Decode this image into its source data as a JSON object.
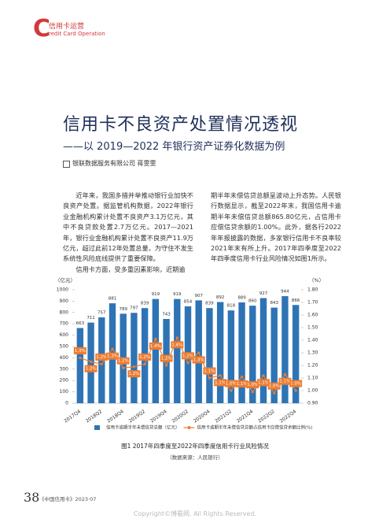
{
  "header": {
    "logo_letter": "C",
    "section": "信用卡运营",
    "section_en": "redit Card Operation"
  },
  "article": {
    "title": "信用卡不良资产处置情况透视",
    "subtitle": "——以 2019—2022 年银行资产证券化数据为例",
    "author": "银联数据服务有限公司  蒋雯雯",
    "left_column": [
      "近年来，我国多措并举推动银行业加快不良资产处置。据监管机构数据，2022年银行业金融机构累计处置不良资产3.1万亿元，其中不良贷款处置2.7万亿元。2017—2021年，银行业金融机构累计处置不良资产11.9万亿元，超过此前12年处置总量，为守住不发生系统性风险底线提供了重要保障。",
      "信用卡方面，受多重因素影响，近期逾"
    ],
    "right_column": [
      "期半年未偿信贷总额呈波动上升态势。人民银行数据显示，截至2022年末，我国信用卡逾期半年未偿信贷总额865.80亿元，占信用卡应偿信贷余额的1.00%。此外，据各行2022年年报披露的数据，多家银行信用卡不良率较2021年末有所上升。2017年四季度至2022年四季度信用卡行业风险情况如图1所示。"
    ]
  },
  "chart_data": {
    "type": "bar-line",
    "title": "图1  2017年四季度至2022年四季度信用卡行业风险情况",
    "source": "（数据来源：人民银行）",
    "ylabel": "（亿元）",
    "y2label": "（%）",
    "categories": [
      "2017Q4",
      null,
      "2018Q2",
      null,
      "2018Q4",
      null,
      "2019Q2",
      null,
      "2019Q4",
      null,
      "2020Q2",
      null,
      "2020Q4",
      null,
      "2021Q2",
      null,
      "2021Q4",
      null,
      "2022Q2",
      null,
      "2022Q4"
    ],
    "series": [
      {
        "name": "信用卡逾期半年未偿信贷总额（亿元）",
        "type": "bar",
        "color": "#2e74b5",
        "values": [
          663,
          711,
          757,
          881,
          789,
          797,
          839,
          919,
          743,
          919,
          854,
          907,
          839,
          892,
          818,
          889,
          860,
          927,
          843,
          944,
          866
        ]
      },
      {
        "name": "信用卡逾期半年未偿信贷总额占信用卡应偿信贷余额比例(%)",
        "type": "line",
        "axis": "y2",
        "color": "#ed7d31",
        "values": [
          1.26,
          1.23,
          1.21,
          1.33,
          1.18,
          1.19,
          1.21,
          1.41,
          1.2,
          1.42,
          1.22,
          1.3,
          1.1,
          1.12,
          1.0,
          1.11,
          0.99,
          1.12,
          0.98,
          1.13,
          1.0
        ],
        "value_labels": [
          "1.3%",
          "1.2%",
          "1.2%",
          "1.3%",
          "1.2%",
          "1.2%",
          "1.2%",
          "1.4%",
          "1.2%",
          "1.4%",
          "1.2%",
          "1.3%",
          "1.1%",
          "1.1%",
          "1.0%",
          "1.1%",
          "1.0%",
          "1.1%",
          "1.0%",
          "1.1%",
          "1.0%"
        ]
      }
    ],
    "ylim": [
      0,
      1000
    ],
    "yticks": [
      0,
      100,
      200,
      300,
      400,
      500,
      600,
      700,
      800,
      900,
      1000
    ],
    "y2lim": [
      0.9,
      1.8
    ],
    "y2ticks": [
      {
        "value": 0.9,
        "label": "0.90"
      },
      {
        "value": 1.0,
        "label": "1.00"
      },
      {
        "value": 1.1,
        "label": "1.10"
      },
      {
        "value": 1.2,
        "label": "1.20"
      },
      {
        "value": 1.3,
        "label": "1.30"
      },
      {
        "value": 1.4,
        "label": "1.40"
      },
      {
        "value": 1.5,
        "label": "1.50"
      },
      {
        "value": 1.6,
        "label": "1.60"
      },
      {
        "value": 1.7,
        "label": "1.70"
      },
      {
        "value": 1.8,
        "label": "1.80"
      }
    ],
    "legend": "bottom"
  },
  "footer": {
    "page": "38",
    "magazine": "《中国信用卡》2023·07",
    "watermark": "Copyright©博看网. All Rights Reserved."
  }
}
